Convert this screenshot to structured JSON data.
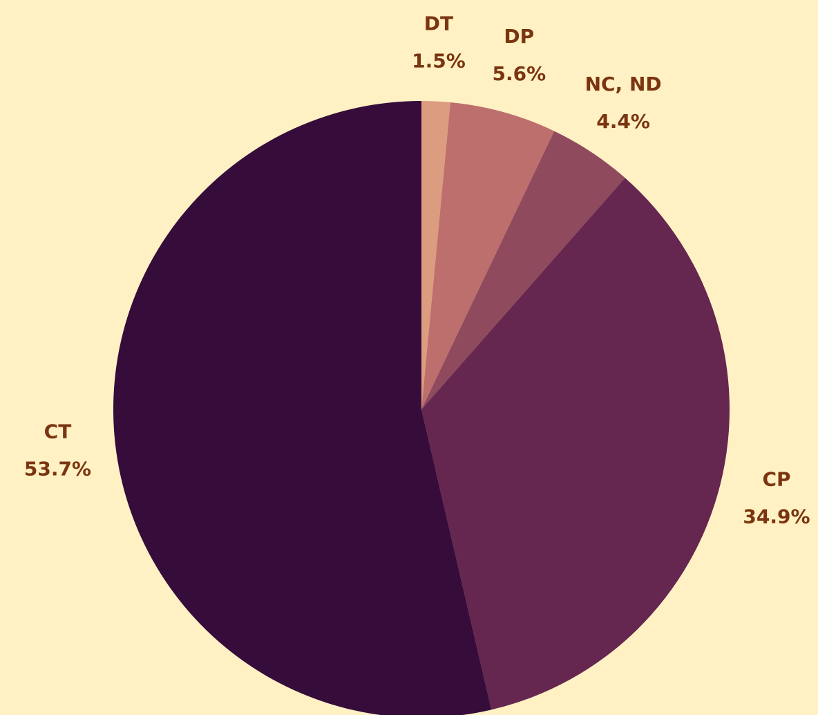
{
  "chart_data": {
    "type": "pie",
    "categories": [
      "DT",
      "DP",
      "NC, ND",
      "CP",
      "CT"
    ],
    "values": [
      1.5,
      5.6,
      4.4,
      34.9,
      53.7
    ],
    "value_labels": [
      "1.5%",
      "5.6%",
      "4.4%",
      "34.9%",
      "53.7%"
    ],
    "colors": [
      "#dc9c80",
      "#bd6f6d",
      "#8f4a5e",
      "#65264f",
      "#360c3b"
    ]
  }
}
